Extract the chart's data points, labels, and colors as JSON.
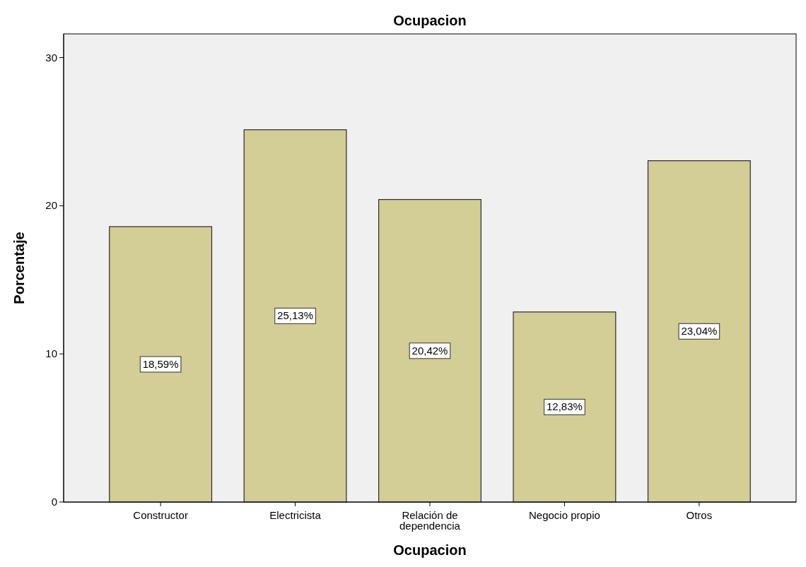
{
  "chart_data": {
    "type": "bar",
    "title": "Ocupacion",
    "xlabel": "Ocupacion",
    "ylabel": "Porcentaje",
    "categories": [
      "Constructor",
      "Electricista",
      "Relación de dependencia",
      "Negocio propio",
      "Otros"
    ],
    "values": [
      18.59,
      25.13,
      20.42,
      12.83,
      23.04
    ],
    "value_labels": [
      "18,59%",
      "25,13%",
      "20,42%",
      "12,83%",
      "23,04%"
    ],
    "color": "#d3cd96",
    "ylim": [
      0,
      31.6
    ],
    "yticks": [
      0,
      10,
      20,
      30
    ],
    "grid": false
  }
}
